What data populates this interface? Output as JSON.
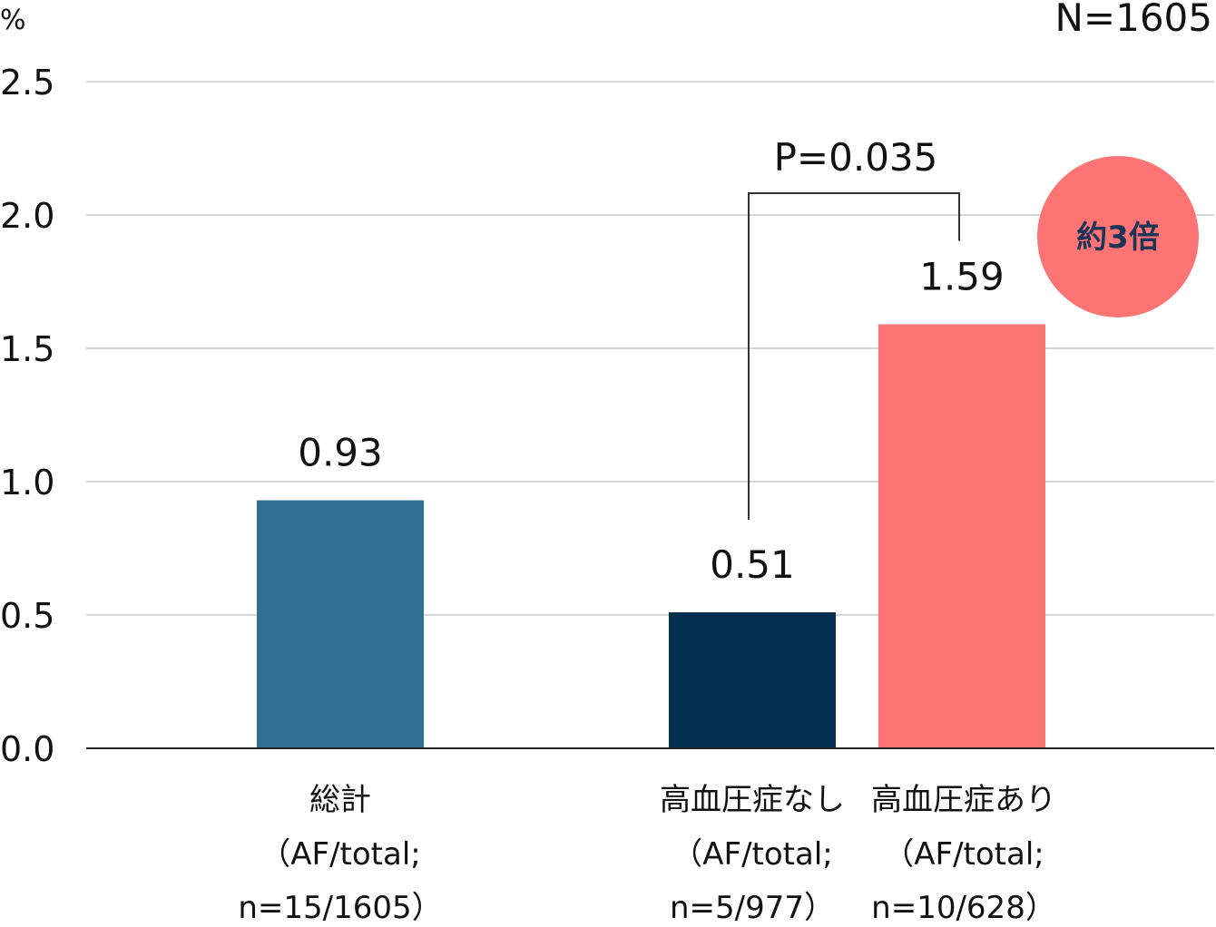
{
  "chart_data": {
    "type": "bar",
    "unit": "%",
    "sample_label": "N=1605",
    "ylim": [
      0,
      2.5
    ],
    "yticks": [
      "0.0",
      "0.5",
      "1.0",
      "1.5",
      "2.0",
      "2.5"
    ],
    "grid": true,
    "categories": [
      {
        "label": "総計",
        "sub1": "（AF/total;",
        "sub2": "n=15/1605）"
      },
      {
        "label": "高血圧症なし",
        "sub1": "（AF/total;",
        "sub2": "n=5/977）"
      },
      {
        "label": "高血圧症あり",
        "sub1": "（AF/total;",
        "sub2": "n=10/628）"
      }
    ],
    "values": [
      0.93,
      0.51,
      1.59
    ],
    "value_labels": [
      "0.93",
      "0.51",
      "1.59"
    ],
    "colors": [
      "#307096",
      "#03304f",
      "#fe7373"
    ],
    "comparison": {
      "between": [
        1,
        2
      ],
      "label": "P=0.035"
    },
    "badge": {
      "label": "約3倍",
      "color": "#fe7373"
    }
  }
}
